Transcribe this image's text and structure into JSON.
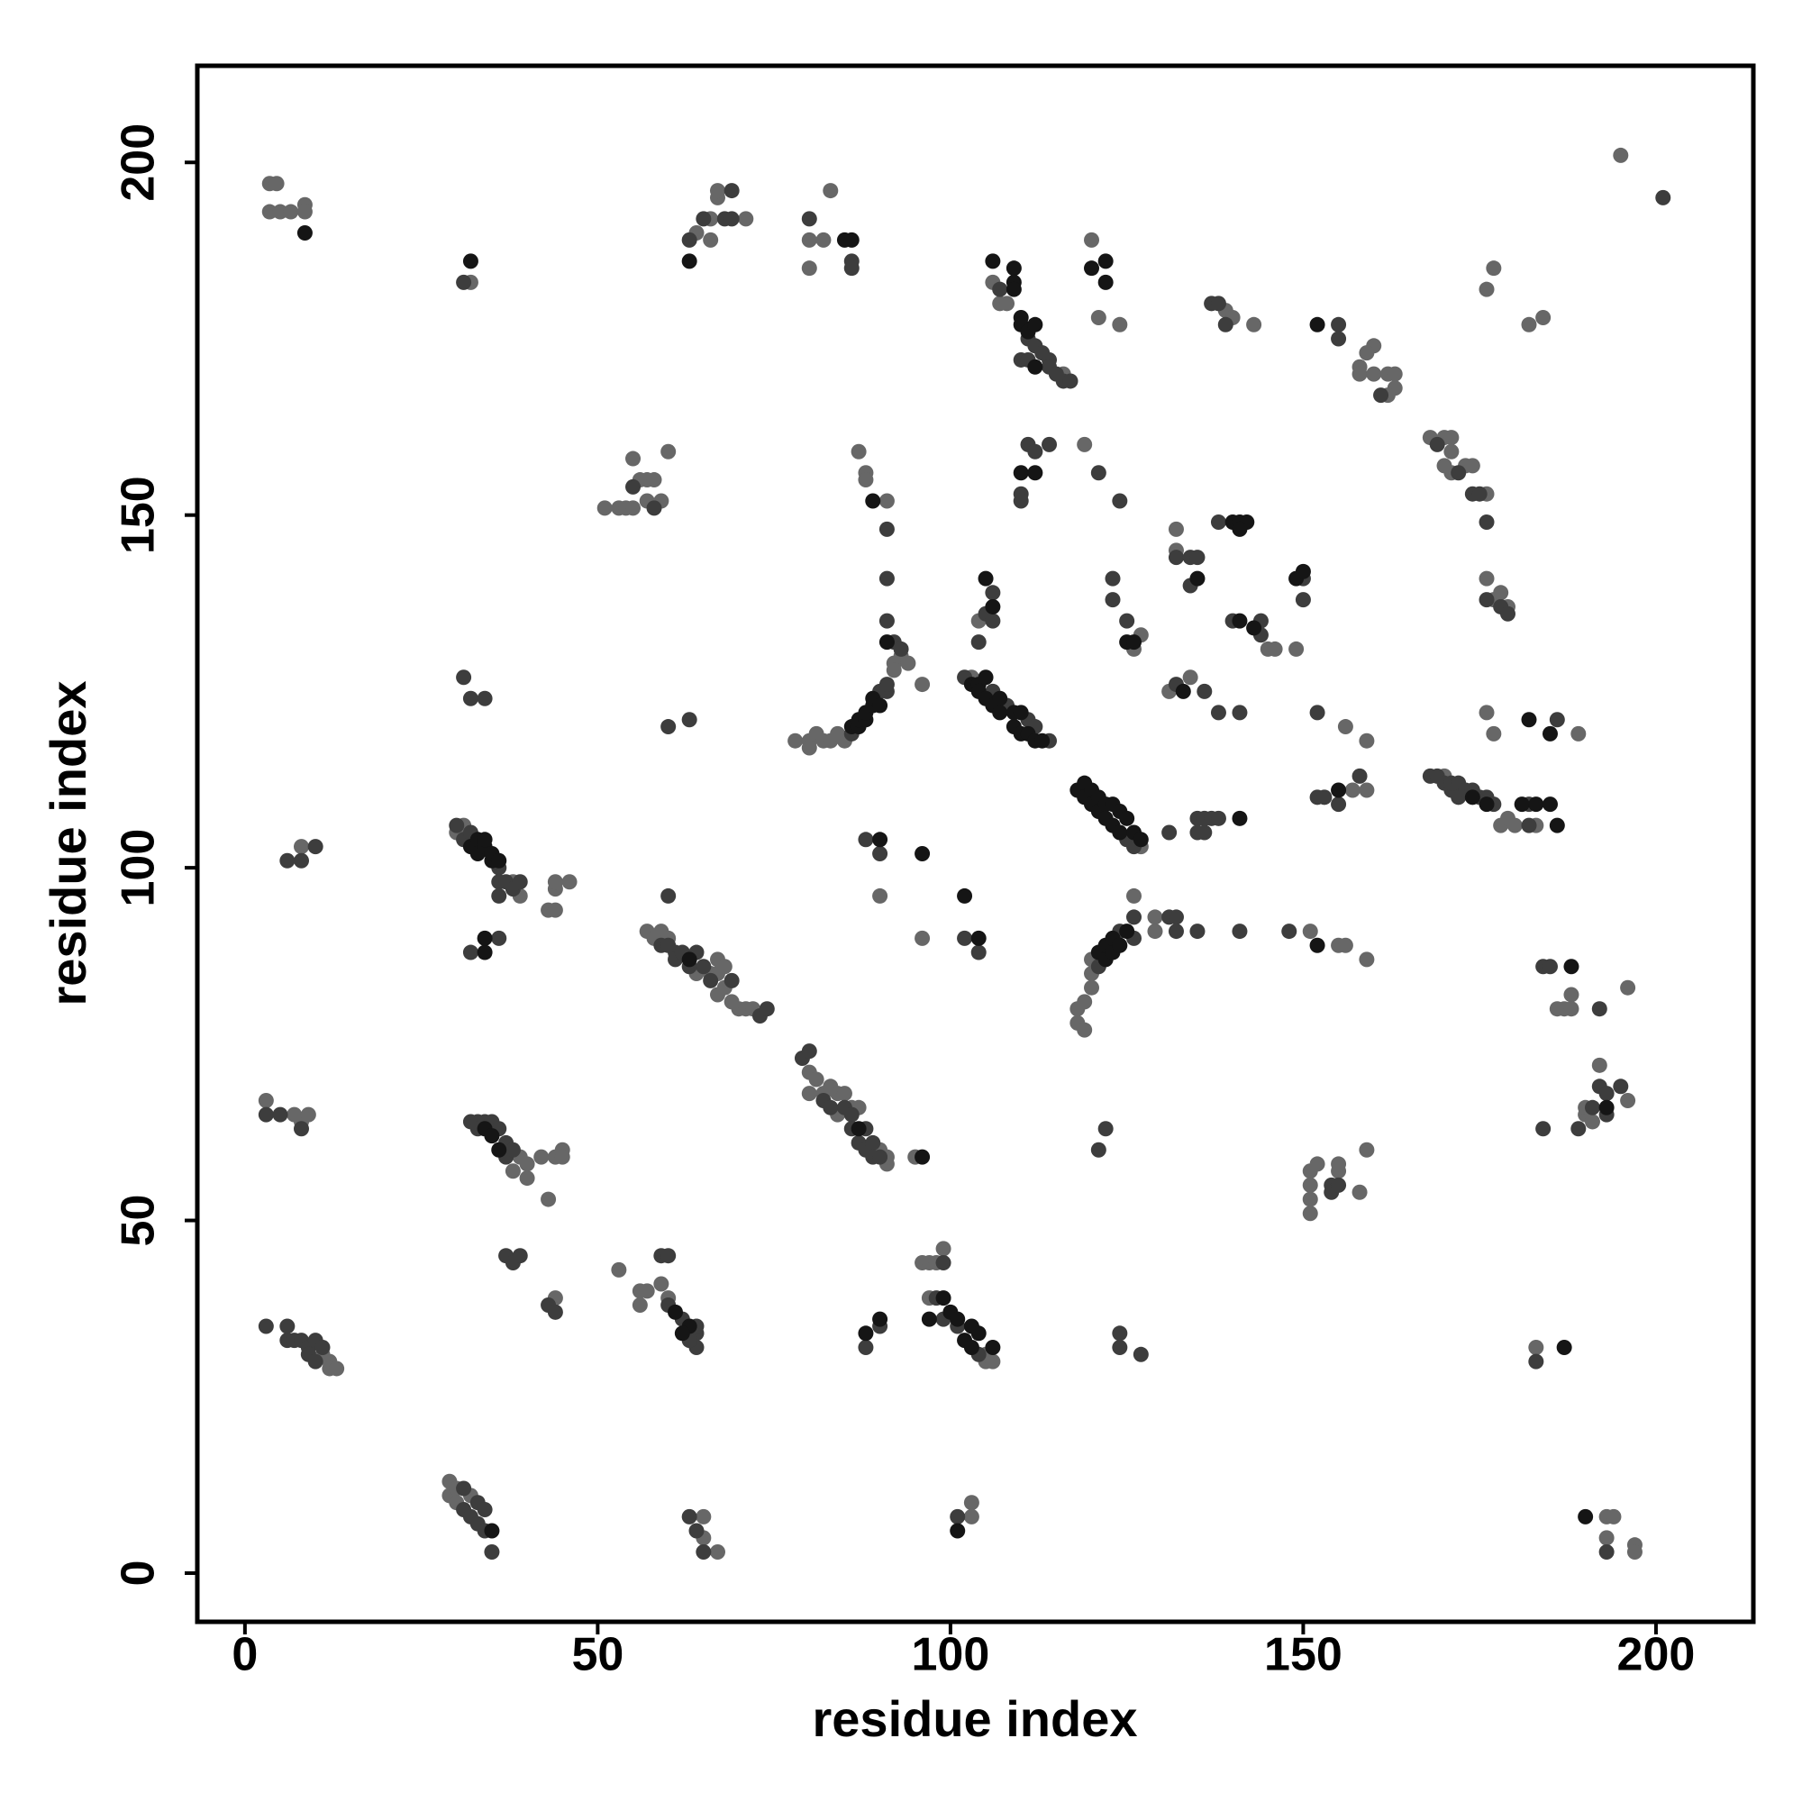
{
  "chart_data": {
    "type": "scatter",
    "xlabel": "residue index",
    "ylabel": "residue index",
    "xlim": [
      -6.75,
      213.8
    ],
    "ylim": [
      -6.9,
      213.7
    ],
    "xticks": [
      0,
      50,
      100,
      150,
      200
    ],
    "yticks": [
      0,
      50,
      100,
      150,
      200
    ],
    "series": [
      {
        "color": "#676767",
        "x": [
          3.5,
          4.5,
          3.5,
          5,
          6.5,
          8.5,
          8.5,
          32,
          64,
          66,
          66,
          67,
          67,
          71,
          80,
          80,
          82,
          83,
          106,
          107,
          108,
          116,
          120,
          121,
          124,
          139,
          140,
          143,
          160,
          159,
          158,
          158,
          160,
          162,
          163,
          163,
          162,
          176,
          177,
          182,
          184,
          195,
          51,
          53,
          54,
          55,
          56,
          57,
          58,
          55,
          57,
          59,
          60,
          87,
          88,
          88,
          91,
          119,
          132,
          132,
          145,
          146,
          149,
          126,
          127,
          168,
          170,
          171,
          171,
          170,
          171,
          173,
          174,
          176,
          176,
          177,
          178,
          179,
          104,
          78,
          80,
          80,
          81,
          82,
          83,
          84,
          85,
          92,
          93,
          92,
          94,
          96,
          103,
          134,
          131,
          156,
          159,
          157,
          159,
          176,
          177,
          189,
          127,
          170,
          178,
          179,
          180,
          183,
          8,
          30,
          31,
          38,
          39,
          43,
          44,
          44,
          44,
          46,
          90,
          96,
          57,
          58,
          59,
          60,
          64,
          66,
          67,
          67,
          67,
          68,
          68,
          69,
          70,
          71,
          72,
          118,
          118,
          119,
          119,
          120,
          120,
          120,
          126,
          129,
          129,
          151,
          155,
          156,
          159,
          188,
          187,
          186,
          188,
          196,
          80,
          80,
          81,
          82,
          83,
          84,
          84,
          85,
          86,
          87,
          90,
          91,
          91,
          95,
          3,
          7,
          8,
          9,
          38,
          39,
          40,
          40,
          42,
          43,
          44,
          45,
          45,
          151,
          152,
          151,
          151,
          151,
          155,
          155,
          158,
          159,
          190,
          190,
          191,
          192,
          196,
          44,
          53,
          56,
          57,
          56,
          59,
          60,
          96,
          97,
          98,
          99,
          97,
          105,
          105,
          106,
          183,
          11,
          12,
          12,
          13,
          29,
          29,
          30,
          30,
          32,
          65,
          65,
          67,
          103,
          103,
          193,
          194,
          193,
          197,
          197
        ],
        "y": [
          197,
          197,
          193,
          193,
          193,
          194,
          193,
          183,
          190,
          192,
          189,
          195,
          196,
          192,
          189,
          185,
          189,
          196,
          183,
          180,
          180,
          170,
          189,
          178,
          177,
          179,
          178,
          177,
          174,
          173,
          171,
          170,
          170,
          170,
          170,
          168,
          167,
          182,
          185,
          177,
          178,
          201,
          151,
          151,
          151,
          151,
          155,
          155,
          155,
          158,
          152,
          152,
          159,
          159,
          156,
          155,
          152,
          160,
          148,
          145,
          131,
          131,
          131,
          131,
          133,
          161,
          161,
          161,
          159,
          157,
          156,
          157,
          157,
          153,
          141,
          138,
          139,
          137,
          135,
          118,
          118,
          117,
          119,
          118,
          118,
          119,
          118,
          129,
          130,
          128,
          129,
          126,
          127,
          127,
          125,
          120,
          118,
          111,
          111,
          122,
          119,
          119,
          103,
          113,
          106,
          107,
          106,
          106,
          103,
          105,
          106,
          98,
          96,
          94,
          94,
          97,
          98,
          98,
          96,
          90,
          91,
          90,
          91,
          90,
          85,
          85,
          85,
          87,
          82,
          86,
          83,
          81,
          80,
          80,
          80,
          80,
          78,
          77,
          81,
          83,
          85,
          87,
          96,
          93,
          91,
          91,
          89,
          89,
          87,
          82,
          80,
          80,
          80,
          83,
          71,
          68,
          70,
          68,
          69,
          68,
          65,
          68,
          66,
          66,
          60,
          58,
          59,
          59,
          67,
          65,
          64,
          65,
          57,
          59,
          56,
          58,
          59,
          53,
          59,
          60,
          59,
          57,
          58,
          55,
          53,
          51,
          57,
          58,
          54,
          60,
          65,
          66,
          64,
          72,
          67,
          39,
          43,
          40,
          40,
          38,
          41,
          39,
          44,
          44,
          44,
          46,
          39,
          31,
          30,
          30,
          32,
          31,
          30,
          29,
          29,
          13,
          11,
          12,
          10,
          11,
          8,
          5,
          3,
          10,
          8,
          8,
          8,
          5,
          4,
          3
        ]
      },
      {
        "color": "#3d3d3d",
        "x": [
          31,
          63,
          65,
          68,
          69,
          69,
          80,
          86,
          86,
          107,
          111,
          112,
          113,
          114,
          114,
          115,
          116,
          117,
          110,
          111,
          137,
          138,
          139,
          155,
          155,
          161,
          201,
          55,
          58,
          91,
          91,
          91,
          92,
          111,
          112,
          114,
          110,
          110,
          121,
          124,
          132,
          134,
          135,
          134,
          138,
          140,
          144,
          144,
          150,
          150,
          123,
          123,
          125,
          169,
          172,
          174,
          175,
          176,
          176,
          178,
          179,
          106,
          105,
          106,
          104,
          86,
          90,
          91,
          91,
          93,
          102,
          106,
          108,
          111,
          112,
          114,
          31,
          32,
          34,
          60,
          63,
          132,
          136,
          138,
          141,
          152,
          158,
          155,
          152,
          153,
          186,
          125,
          126,
          131,
          135,
          135,
          136,
          137,
          136,
          138,
          168,
          169,
          170,
          171,
          171,
          172,
          172,
          173,
          174,
          175,
          176,
          177,
          182,
          182,
          6,
          8,
          10,
          30,
          31,
          32,
          36,
          36,
          36,
          37,
          38,
          39,
          32,
          36,
          88,
          90,
          102,
          104,
          59,
          60,
          60,
          61,
          61,
          62,
          63,
          64,
          65,
          66,
          69,
          73,
          74,
          121,
          124,
          126,
          126,
          131,
          132,
          132,
          135,
          141,
          148,
          184,
          185,
          192,
          79,
          80,
          82,
          83,
          85,
          86,
          86,
          87,
          88,
          88,
          89,
          89,
          90,
          3,
          5,
          8,
          32,
          33,
          33,
          34,
          35,
          36,
          37,
          37,
          38,
          121,
          122,
          154,
          154,
          155,
          184,
          189,
          191,
          192,
          193,
          193,
          195,
          37,
          38,
          39,
          43,
          44,
          59,
          60,
          60,
          62,
          64,
          64,
          64,
          63,
          99,
          98,
          99,
          101,
          104,
          88,
          90,
          124,
          124,
          127,
          183,
          3,
          6,
          6,
          7,
          8,
          9,
          9,
          10,
          10,
          11,
          31,
          31,
          32,
          33,
          33,
          34,
          34,
          35,
          63,
          64,
          65,
          101,
          193
        ],
        "y": [
          183,
          189,
          192,
          192,
          196,
          192,
          192,
          186,
          185,
          182,
          175,
          174,
          173,
          172,
          171,
          170,
          169,
          169,
          172,
          172,
          180,
          180,
          177,
          177,
          175,
          167,
          195,
          154,
          151,
          148,
          141,
          135,
          132,
          160,
          159,
          160,
          153,
          152,
          156,
          152,
          144,
          144,
          144,
          140,
          149,
          135,
          135,
          133,
          141,
          138,
          141,
          138,
          135,
          160,
          156,
          153,
          153,
          149,
          138,
          137,
          136,
          139,
          136,
          135,
          132,
          119,
          125,
          125,
          126,
          131,
          127,
          125,
          123,
          121,
          120,
          118,
          127,
          124,
          124,
          120,
          121,
          126,
          125,
          122,
          122,
          122,
          113,
          109,
          110,
          110,
          121,
          104,
          103,
          105,
          107,
          105,
          107,
          107,
          105,
          107,
          113,
          113,
          112,
          111,
          112,
          112,
          110,
          111,
          111,
          110,
          110,
          109,
          109,
          106,
          101,
          101,
          103,
          106,
          104,
          105,
          100,
          98,
          96,
          98,
          97,
          98,
          88,
          90,
          104,
          102,
          90,
          88,
          89,
          96,
          89,
          88,
          87,
          88,
          86,
          88,
          86,
          84,
          84,
          79,
          80,
          86,
          91,
          90,
          93,
          93,
          93,
          91,
          91,
          91,
          91,
          86,
          86,
          80,
          73,
          74,
          67,
          66,
          66,
          65,
          63,
          61,
          63,
          60,
          61,
          59,
          59,
          65,
          65,
          63,
          64,
          64,
          63,
          64,
          64,
          63,
          61,
          59,
          60,
          60,
          63,
          55,
          54,
          55,
          63,
          63,
          66,
          69,
          68,
          65,
          69,
          45,
          44,
          45,
          38,
          37,
          45,
          45,
          38,
          36,
          34,
          35,
          32,
          33,
          44,
          39,
          36,
          35,
          31,
          32,
          35,
          34,
          32,
          31,
          30,
          35,
          35,
          33,
          33,
          33,
          32,
          31,
          33,
          30,
          32,
          12,
          9,
          8,
          10,
          7,
          9,
          6,
          3,
          8,
          6,
          3,
          8,
          3
        ]
      },
      {
        "color": "#151515",
        "x": [
          8.5,
          32,
          63,
          85,
          86,
          106,
          109,
          109,
          109,
          110,
          110,
          111,
          112,
          112,
          120,
          122,
          122,
          152,
          89,
          110,
          112,
          91,
          135,
          140,
          141,
          142,
          141,
          143,
          141,
          149,
          150,
          125,
          126,
          105,
          106,
          86,
          87,
          87,
          88,
          88,
          89,
          89,
          90,
          103,
          104,
          104,
          105,
          105,
          106,
          107,
          107,
          109,
          109,
          110,
          110,
          111,
          112,
          113,
          133,
          155,
          182,
          185,
          118,
          119,
          119,
          120,
          120,
          121,
          121,
          122,
          122,
          123,
          123,
          124,
          124,
          125,
          126,
          127,
          141,
          174,
          176,
          181,
          183,
          185,
          186,
          32,
          33,
          33,
          34,
          34,
          35,
          35,
          36,
          34,
          34,
          90,
          96,
          102,
          104,
          63,
          121,
          122,
          122,
          123,
          123,
          124,
          125,
          152,
          188,
          87,
          96,
          34,
          35,
          36,
          193,
          61,
          63,
          62,
          99,
          97,
          100,
          101,
          102,
          103,
          103,
          104,
          106,
          88,
          90,
          187,
          35,
          101,
          190
        ],
        "y": [
          190,
          186,
          186,
          189,
          189,
          186,
          185,
          183,
          182,
          178,
          177,
          176,
          177,
          171,
          185,
          186,
          183,
          177,
          152,
          156,
          156,
          132,
          141,
          149,
          149,
          149,
          148,
          134,
          135,
          141,
          142,
          132,
          132,
          141,
          137,
          120,
          120,
          121,
          121,
          122,
          123,
          124,
          123,
          126,
          126,
          125,
          127,
          124,
          123,
          124,
          122,
          122,
          120,
          122,
          119,
          119,
          118,
          118,
          125,
          111,
          121,
          119,
          111,
          112,
          110,
          111,
          109,
          110,
          108,
          109,
          107,
          109,
          106,
          108,
          105,
          107,
          105,
          104,
          107,
          110,
          109,
          109,
          109,
          109,
          106,
          103,
          104,
          102,
          103,
          104,
          101,
          102,
          101,
          88,
          90,
          104,
          102,
          96,
          90,
          87,
          88,
          87,
          89,
          88,
          90,
          89,
          91,
          89,
          86,
          63,
          59,
          63,
          62,
          60,
          66,
          37,
          35,
          34,
          39,
          36,
          37,
          36,
          33,
          35,
          32,
          34,
          32,
          34,
          36,
          32,
          6,
          6,
          8
        ]
      }
    ]
  }
}
